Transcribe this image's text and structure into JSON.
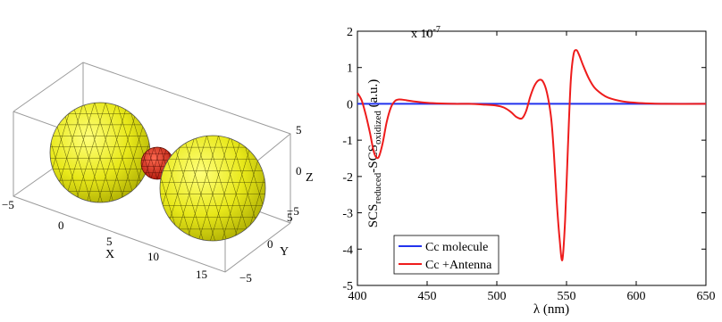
{
  "left_panel": {
    "axis_labels": {
      "x": "X",
      "y": "Y",
      "z": "Z"
    },
    "x_ticks": [
      "−5",
      "0",
      "5",
      "10",
      "15"
    ],
    "y_ticks": [
      "−5",
      "0",
      "5"
    ],
    "z_ticks": [
      "−5",
      "0",
      "5"
    ],
    "colors": {
      "gold": "#e8e81a",
      "gold_dark": "#b8b800",
      "molecule": "#e02818",
      "molecule_dark": "#8a1208",
      "box": "#999999"
    }
  },
  "chart_data": {
    "type": "line",
    "title": "",
    "xlabel": "λ (nm)",
    "ylabel_main": "SCS",
    "ylabel_sub1": "reduced",
    "ylabel_mid": "-SCS",
    "ylabel_sub2": "oxidized",
    "ylabel_unit": " (a.u.)",
    "y_exponent_base": "x 10",
    "y_exponent_power": "-7",
    "xlim": [
      400,
      650
    ],
    "ylim": [
      -5,
      2
    ],
    "x_ticks": [
      "400",
      "450",
      "500",
      "550",
      "600",
      "650"
    ],
    "y_ticks": [
      "2",
      "1",
      "0",
      "-1",
      "-2",
      "-3",
      "-4",
      "-5"
    ],
    "legend_position": "bottom-left",
    "series": [
      {
        "name": "Cc molecule",
        "color": "#2233ee",
        "x": [
          400,
          650
        ],
        "y": [
          0,
          0
        ]
      },
      {
        "name": "Cc +Antenna",
        "color": "#ee1c1c",
        "x": [
          400,
          403,
          406,
          409,
          412,
          415,
          418,
          421,
          424,
          427,
          430,
          435,
          440,
          450,
          460,
          470,
          480,
          490,
          500,
          505,
          510,
          514,
          518,
          521,
          524,
          527,
          530,
          533,
          536,
          539,
          541,
          543,
          545,
          547,
          549,
          551,
          553,
          555,
          557,
          559,
          562,
          566,
          570,
          575,
          580,
          590,
          600,
          610,
          620,
          650
        ],
        "y": [
          0.3,
          0.1,
          -0.3,
          -0.8,
          -1.35,
          -1.48,
          -1.1,
          -0.5,
          -0.1,
          0.08,
          0.12,
          0.1,
          0.07,
          0.03,
          0.01,
          0.0,
          0.0,
          -0.02,
          -0.05,
          -0.1,
          -0.22,
          -0.36,
          -0.4,
          -0.2,
          0.2,
          0.5,
          0.65,
          0.62,
          0.3,
          -0.4,
          -1.4,
          -2.7,
          -3.7,
          -4.3,
          -3.2,
          -1.2,
          0.6,
          1.35,
          1.48,
          1.35,
          1.05,
          0.7,
          0.45,
          0.28,
          0.17,
          0.07,
          0.03,
          0.01,
          0.0,
          0.0
        ]
      }
    ]
  }
}
